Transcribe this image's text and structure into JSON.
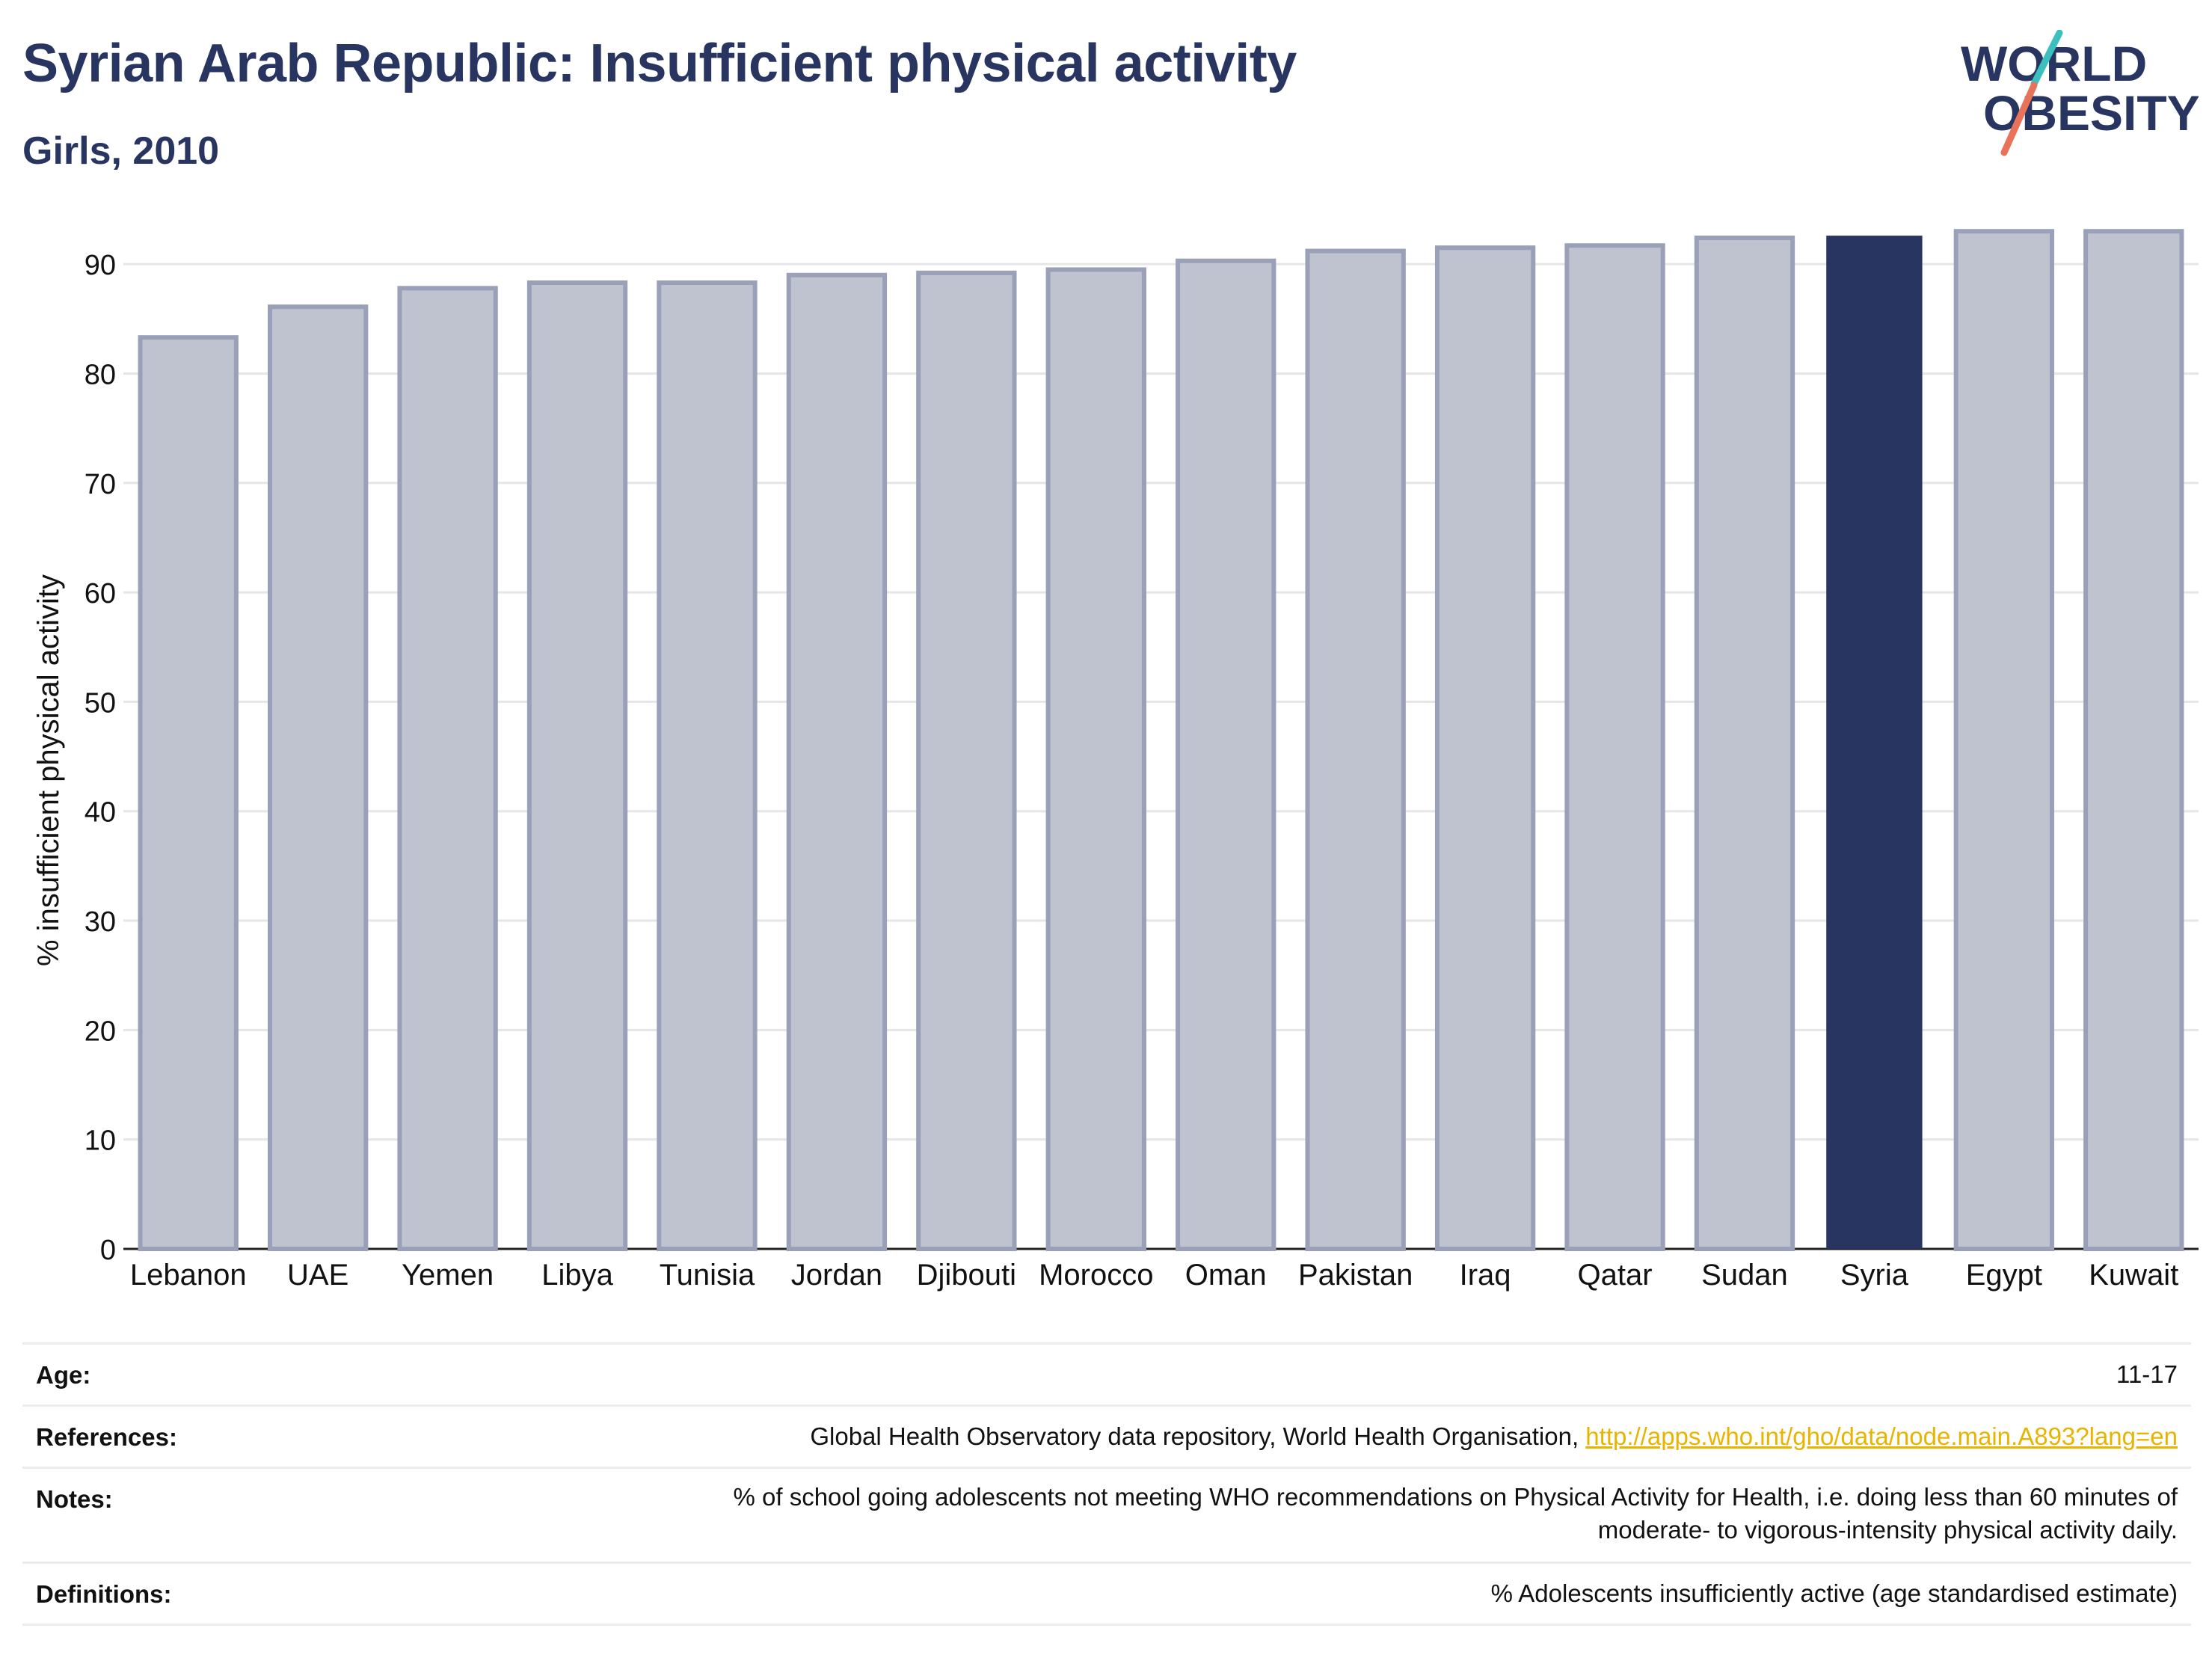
{
  "header": {
    "title": "Syrian Arab Republic: Insufficient physical activity",
    "subtitle": "Girls, 2010"
  },
  "logo": {
    "line1": "WORLD",
    "line2": "OBESITY"
  },
  "colors": {
    "highlight": "#283560",
    "bar_fill": "#bfc2cf",
    "bar_stroke": "#9aa0b8",
    "link": "#e8b400",
    "title": "#283560"
  },
  "chart_data": {
    "type": "bar",
    "categories": [
      "Lebanon",
      "UAE",
      "Yemen",
      "Libya",
      "Tunisia",
      "Jordan",
      "Djibouti",
      "Morocco",
      "Oman",
      "Pakistan",
      "Iraq",
      "Qatar",
      "Sudan",
      "Syria",
      "Egypt",
      "Kuwait"
    ],
    "values": [
      83.3,
      86.1,
      87.8,
      88.3,
      88.3,
      89.0,
      89.2,
      89.5,
      90.3,
      91.2,
      91.5,
      91.7,
      92.4,
      92.6,
      93.0,
      93.0
    ],
    "highlight": "Syria",
    "ylabel": "% insufficient physical activity",
    "ylim": [
      0,
      95
    ],
    "yticks": [
      0,
      10,
      20,
      30,
      40,
      50,
      60,
      70,
      80,
      90
    ],
    "grid": true
  },
  "meta": {
    "age": {
      "label": "Age:",
      "value": "11-17"
    },
    "references": {
      "label": "References:",
      "text": "Global Health Observatory data repository, World Health Organisation, ",
      "link": "http://apps.who.int/gho/data/node.main.A893?lang=en"
    },
    "notes": {
      "label": "Notes:",
      "line1": "% of school going adolescents not meeting WHO recommendations on Physical Activity for Health, i.e. doing less than 60 minutes of",
      "line2": "moderate- to vigorous-intensity physical activity daily."
    },
    "definitions": {
      "label": "Definitions:",
      "value": "% Adolescents insufficiently active (age standardised estimate)"
    }
  }
}
